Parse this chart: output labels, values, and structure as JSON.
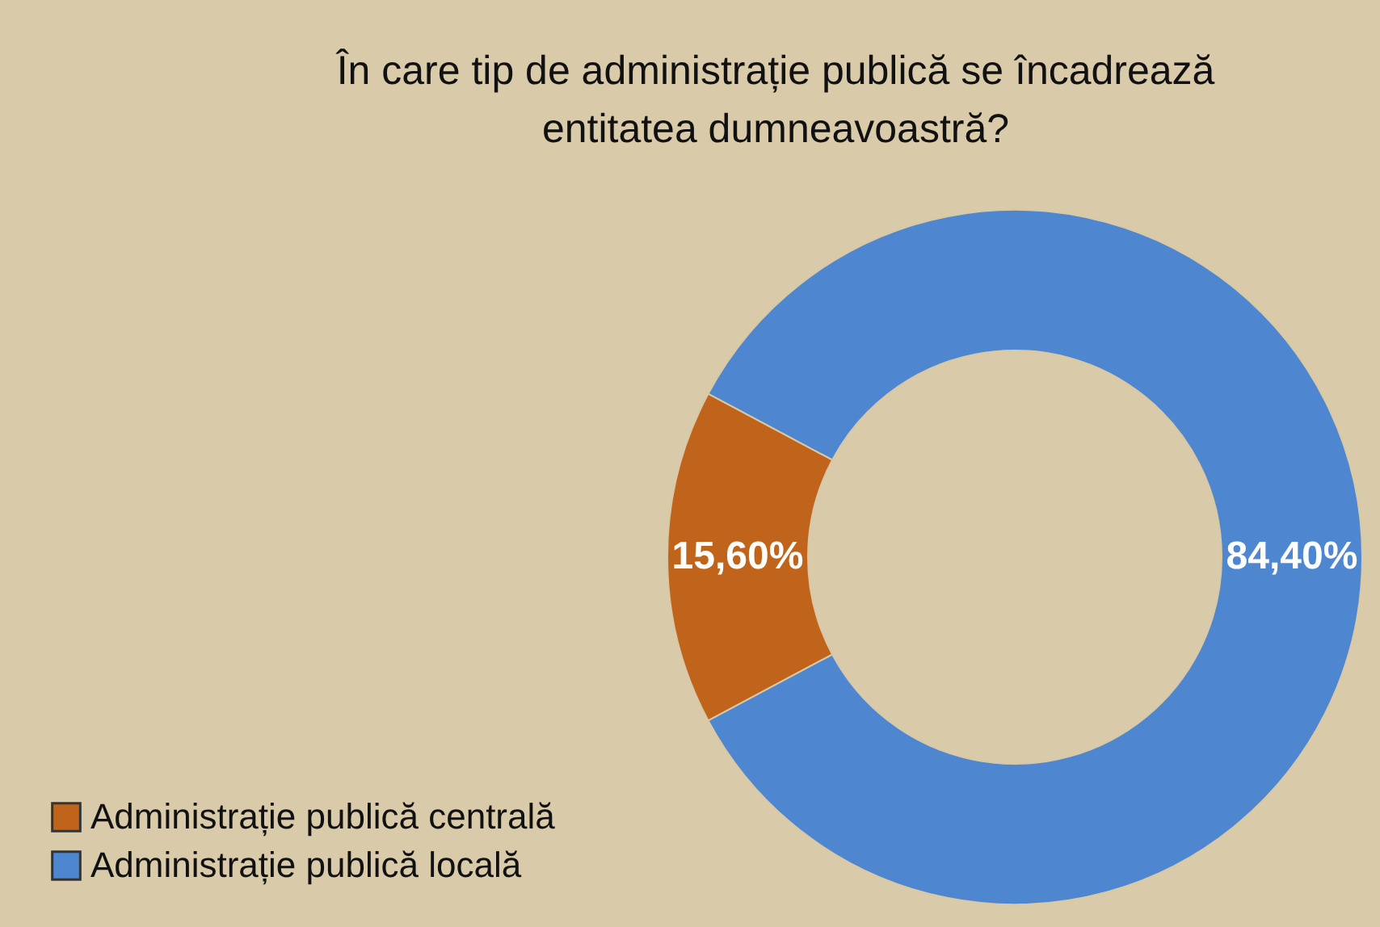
{
  "chart_data": {
    "type": "donut",
    "title": "În care tip de administrație publică se încadrează entitatea dumneavoastră?",
    "categories": [
      "Administrație publică centrală",
      "Administrație publică locală"
    ],
    "values": [
      15.6,
      84.4
    ],
    "colors": [
      "#c0641c",
      "#4f86d0"
    ],
    "value_labels": [
      "15,60%",
      "84,40%"
    ],
    "legend": "bottom left"
  }
}
